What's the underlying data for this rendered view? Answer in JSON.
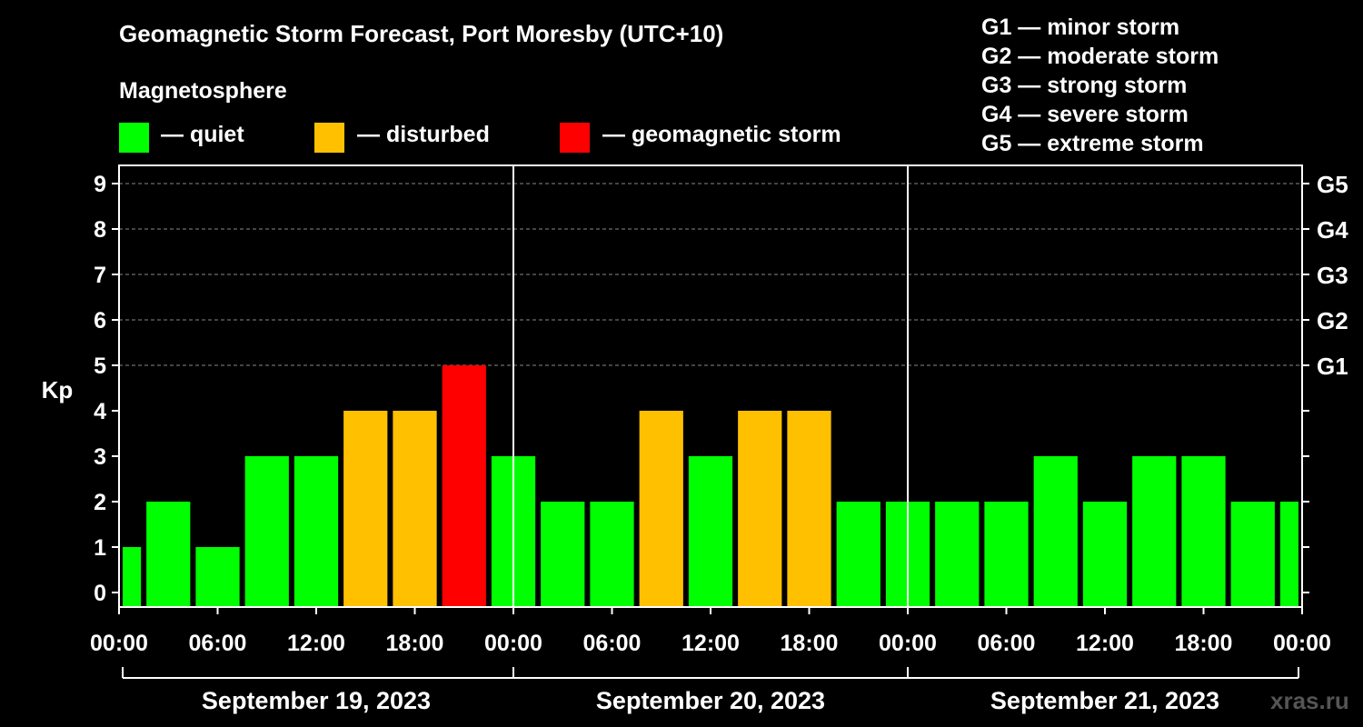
{
  "legend": {
    "heading": "Magnetosphere",
    "items": [
      {
        "label": "— quiet",
        "color": "#00ff00"
      },
      {
        "label": "— disturbed",
        "color": "#ffc000"
      },
      {
        "label": "— geomagnetic storm",
        "color": "#ff0000"
      }
    ]
  },
  "storm_scale": [
    "G1 — minor storm",
    "G2 — moderate storm",
    "G3 — strong storm",
    "G4 — severe storm",
    "G5 — extreme storm"
  ],
  "credit": "xras.ru",
  "chart_data": {
    "type": "bar",
    "title": "Geomagnetic Storm Forecast, Port Moresby (UTC+10)",
    "ylabel": "Kp",
    "ylim": [
      0,
      9
    ],
    "yticks": [
      "0",
      "1",
      "2",
      "3",
      "4",
      "5",
      "6",
      "7",
      "8",
      "9"
    ],
    "right_ticks": [
      {
        "kp": 5,
        "label": "G1"
      },
      {
        "kp": 6,
        "label": "G2"
      },
      {
        "kp": 7,
        "label": "G3"
      },
      {
        "kp": 8,
        "label": "G4"
      },
      {
        "kp": 9,
        "label": "G5"
      }
    ],
    "xticks": [
      "00:00",
      "06:00",
      "12:00",
      "18:00",
      "00:00",
      "06:00",
      "12:00",
      "18:00",
      "00:00",
      "06:00",
      "12:00",
      "18:00",
      "00:00"
    ],
    "days": [
      "September 19, 2023",
      "September 20, 2023",
      "September 21, 2023"
    ],
    "grid": "horizontal dashed at Kp 5-9",
    "interval_hours": 3,
    "values": [
      1,
      2,
      1,
      3,
      3,
      4,
      4,
      5,
      3,
      2,
      2,
      4,
      3,
      4,
      4,
      2,
      2,
      2,
      2,
      3,
      2,
      3,
      3,
      2,
      2
    ],
    "colors": {
      "quiet": "#00ff00",
      "disturbed": "#ffc000",
      "storm": "#ff0000"
    }
  }
}
